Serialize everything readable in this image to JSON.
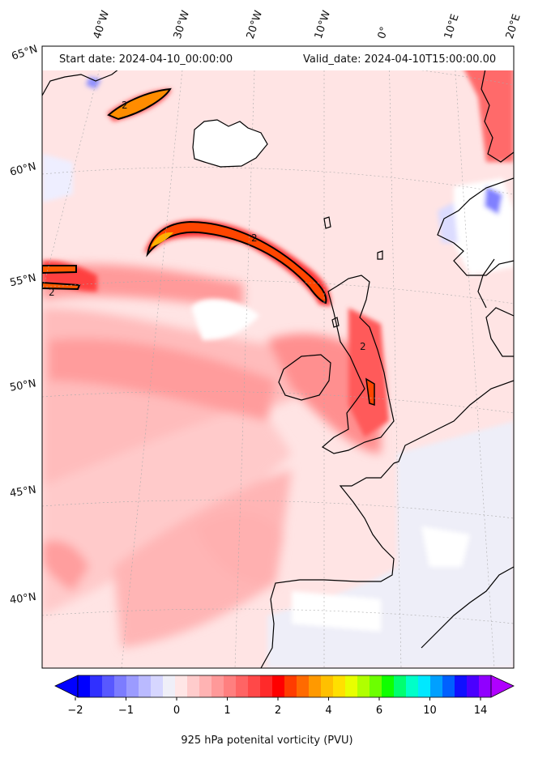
{
  "header": {
    "start_date": "Start date: 2024-04-10_00:00:00",
    "valid_date": "Valid_date: 2024-04-10T15:00:00.00"
  },
  "lon_labels": [
    "40°W",
    "30°W",
    "20°W",
    "10°W",
    "0°",
    "10°E",
    "20°E"
  ],
  "lat_labels": [
    "65°N",
    "60°N",
    "55°N",
    "50°N",
    "45°N",
    "40°N"
  ],
  "contour_labels": [
    "2",
    "2",
    "2",
    "2"
  ],
  "colorbar": {
    "title": "925 hPa potenital vorticity (PVU)",
    "ticks": [
      "−2",
      "−1",
      "0",
      "1",
      "2",
      "4",
      "6",
      "10",
      "14"
    ],
    "colors": [
      "#0000ff",
      "#3030ff",
      "#5858ff",
      "#7c7cff",
      "#9b9bff",
      "#babaff",
      "#d6d6ff",
      "#efeff8",
      "#ffe6e6",
      "#ffcccc",
      "#ffb3b3",
      "#ff9999",
      "#ff7f7f",
      "#ff6464",
      "#ff4848",
      "#ff2a2a",
      "#ff0000",
      "#ff3c00",
      "#ff6a00",
      "#ff9900",
      "#ffc000",
      "#ffe000",
      "#e8ff00",
      "#b0ff00",
      "#6cff00",
      "#10ff00",
      "#00ff70",
      "#00ffc8",
      "#00e8ff",
      "#00a0ff",
      "#0060ff",
      "#1010ff",
      "#4a00ff",
      "#9000ff"
    ]
  }
}
